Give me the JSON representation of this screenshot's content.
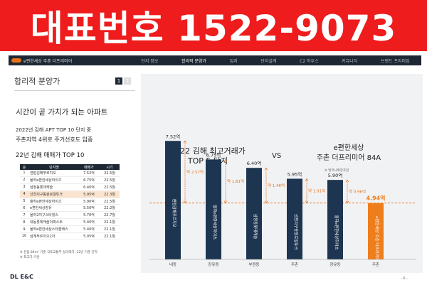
{
  "banner": {
    "text": "대표번호 1522-9073"
  },
  "navbar": {
    "brand": "e편한세상 주촌 더프리미어",
    "items": [
      "단지 정보",
      "합리적 분양가",
      "입지",
      "단지설계",
      "C2 하우스",
      "커뮤니티",
      "브랜드 프리미엄"
    ],
    "active_index": 1
  },
  "left": {
    "section_title": "합리적 분양가",
    "page_indicator": [
      "1",
      "2"
    ],
    "headline": "시간이 곧 가치가 되는 아파트",
    "sub1": "2022년 김해 APT TOP 10 단지 중",
    "sub2": "주촌지역 4위로 주거선호도 입증",
    "table_title": "22년 김해 매매가 TOP 10",
    "table": {
      "headers": [
        "순",
        "단지명",
        "매매가",
        "시기"
      ],
      "rows": [
        [
          "1",
          "센텀김해푸르지오",
          "7.52억",
          "22.5월"
        ],
        [
          "2",
          "율하e편한세상하이츠",
          "6.75억",
          "22.5월"
        ],
        [
          "3",
          "삼정동롯데캐슬",
          "6.40억",
          "22.5월"
        ],
        [
          "4",
          "선천지구동원로얄듀크",
          "5.95억",
          "22.3월"
        ],
        [
          "5",
          "율하e편한세상하이츠",
          "5.90억",
          "22.5월"
        ],
        [
          "6",
          "e편한세상장유",
          "5.50억",
          "22.2월"
        ],
        [
          "7",
          "율하2지구스타힐스",
          "5.70억",
          "22.7월"
        ],
        [
          "8",
          "내동롯데캐슬더퍼스트",
          "5.40억",
          "22.1월"
        ],
        [
          "9",
          "율하e편한세상스타클래스",
          "5.40억",
          "22.1월"
        ],
        [
          "10",
          "삼계푸르지오2차",
          "5.05억",
          "22.1월"
        ]
      ],
      "highlight_row": 3
    },
    "notes": [
      "※ 전용 84m² 기준 국토교통부 실거래가, 22년 기준 단지",
      "※ 최고가 기준"
    ]
  },
  "chart_headings": {
    "left_title": [
      "2022 김해 최고거래가",
      "TOP 5 단지"
    ],
    "vs": "VS",
    "right_title": [
      "e편한세상",
      "주촌 더프리미어 84A"
    ],
    "right_note": "※ 발코니확장포함"
  },
  "chart_data": {
    "type": "bar",
    "categories": [
      "내동",
      "장유동",
      "부원동",
      "주촌",
      "장유동",
      "주촌"
    ],
    "bar_names": [
      "센텀김해푸르지오",
      "율하e편한세상하이츠",
      "삼정동롯데캐슬",
      "선천지구동원로얄듀크",
      "율하e편한세상하이츠",
      "e편한세상 주촌 더프리미어"
    ],
    "values": [
      7.52,
      6.75,
      6.4,
      5.95,
      5.9,
      4.94
    ],
    "value_labels": [
      "7.52억",
      "6.75억",
      "6.40억",
      "5.95억",
      "5.90억",
      "4.94억"
    ],
    "differences": [
      "약 2.57억",
      "약 1.81억",
      "약 1.46억",
      "약 1.01억",
      "약 0.96억"
    ],
    "ylim": [
      2.6,
      8.0
    ],
    "colors": {
      "bar": "#1d3550",
      "highlight": "#ee7d1c",
      "diff": "#e8731a"
    },
    "highlight_index": 5
  },
  "footer": {
    "logo": "DL E&C",
    "page": "- 6 -"
  }
}
